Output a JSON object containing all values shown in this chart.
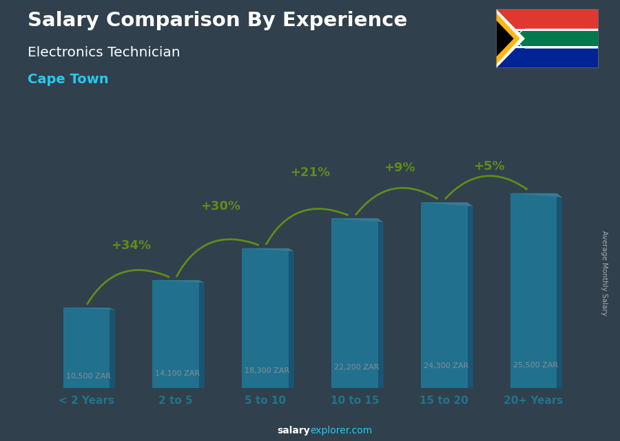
{
  "title": "Salary Comparison By Experience",
  "subtitle": "Electronics Technician",
  "city": "Cape Town",
  "ylabel": "Average Monthly Salary",
  "footer_bold": "salary",
  "footer_light": "explorer.com",
  "categories": [
    "< 2 Years",
    "2 to 5",
    "5 to 10",
    "10 to 15",
    "15 to 20",
    "20+ Years"
  ],
  "values": [
    10500,
    14100,
    18300,
    22200,
    24300,
    25500
  ],
  "labels": [
    "10,500 ZAR",
    "14,100 ZAR",
    "18,300 ZAR",
    "22,200 ZAR",
    "24,300 ZAR",
    "25,500 ZAR"
  ],
  "pct_labels": [
    "+34%",
    "+30%",
    "+21%",
    "+9%",
    "+5%"
  ],
  "bar_color_face": "#29c5f6",
  "bar_color_side": "#1888b8",
  "bar_color_top": "#55d8ff",
  "bg_color": "#4a5e6e",
  "overlay_color": "#1a2530",
  "overlay_alpha": 0.52,
  "title_color": "#ffffff",
  "subtitle_color": "#ffffff",
  "city_color": "#22ccee",
  "label_color": "#ffffff",
  "pct_color": "#aaff00",
  "xlabel_bold_color": "#22ccee",
  "xlabel_light_color": "#22ccee",
  "footer_color": "#aaaaaa",
  "ylabel_color": "#aaaaaa",
  "ylim": [
    0,
    30000
  ],
  "arc_lift": [
    4500,
    5500,
    6000,
    4500,
    3500
  ]
}
